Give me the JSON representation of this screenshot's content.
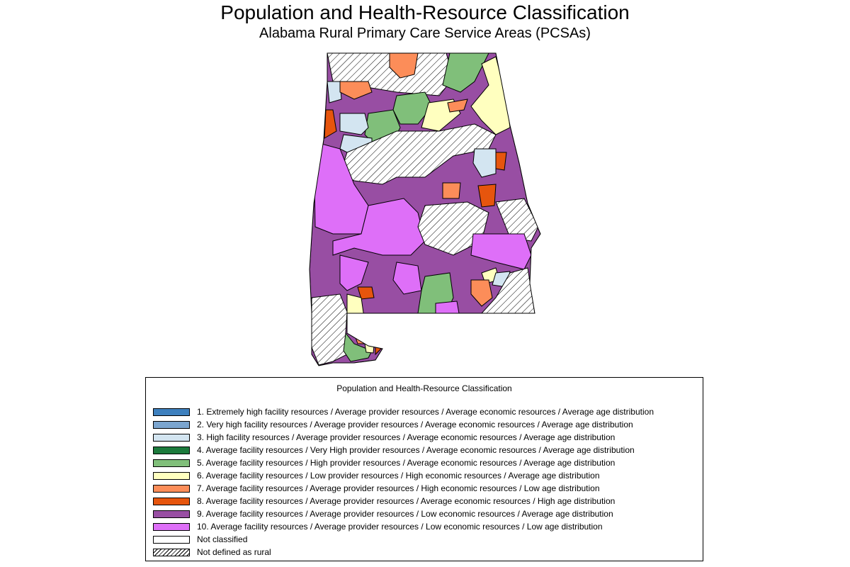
{
  "title": "Population and Health-Resource Classification",
  "subtitle": "Alabama Rural Primary Care Service Areas (PCSAs)",
  "legend": {
    "title": "Population and Health-Resource Classification",
    "items": [
      {
        "label": "1. Extremely high facility resources / Average provider resources / Average economic resources / Average age distribution",
        "color": "#3d80be"
      },
      {
        "label": "2. Very high facility resources / Average provider resources / Average economic resources / Average age distribution",
        "color": "#7ba5cf"
      },
      {
        "label": "3. High facility resources / Average provider resources / Average economic resources / Average age distribution",
        "color": "#d3e5f1"
      },
      {
        "label": "4. Average facility resources / Very High provider resources / Average economic resources / Average age distribution",
        "color": "#1c7a3c"
      },
      {
        "label": "5. Average facility resources / High provider resources / Average economic resources / Average age distribution",
        "color": "#80bf7a"
      },
      {
        "label": "6. Average facility resources / Low provider resources / High economic resources / Average age distribution",
        "color": "#ffffbf"
      },
      {
        "label": "7. Average facility resources / Average provider resources / High economic resources / Low age distribution",
        "color": "#fc8d59"
      },
      {
        "label": "8. Average facility resources / Average provider resources / Average economic resources / High age distribution",
        "color": "#e6550d"
      },
      {
        "label": "9. Average facility resources / Average provider resources / Low economic resources / Average age distribution",
        "color": "#984ea3"
      },
      {
        "label": "10. Average facility resources / Average provider resources / Low economic resources / Low age distribution",
        "color": "#de6ff8"
      },
      {
        "label": "Not classified",
        "color": "#ffffff"
      },
      {
        "label": "Not defined as rural",
        "color": "hatch"
      }
    ]
  }
}
